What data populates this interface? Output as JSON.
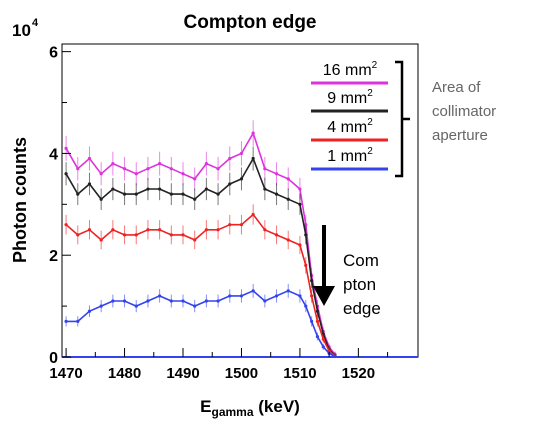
{
  "chart_data": {
    "type": "line",
    "title": "Compton edge",
    "xlabel_main": "E",
    "xlabel_sub": "gamma",
    "xlabel_unit": " (keV)",
    "ylabel": "Photon counts",
    "y_multiplier_base": "10",
    "y_multiplier_exp": "4",
    "xlim": [
      1469.3,
      1530.2
    ],
    "ylim": [
      0,
      6.15
    ],
    "x_ticks": [
      1470,
      1480,
      1490,
      1500,
      1510,
      1520
    ],
    "y_ticks": [
      0,
      2,
      4,
      6
    ],
    "grid": false,
    "legend_placement": "top-right",
    "legend_title": [
      "Area of",
      "collimator",
      "aperture"
    ],
    "annotation": [
      "Com",
      "pton",
      "edge"
    ],
    "series": [
      {
        "name": "16 mm",
        "name_sup": "2",
        "color": "#dd33dd",
        "x": [
          1470,
          1472,
          1474,
          1476,
          1478,
          1480,
          1482,
          1484,
          1486,
          1488,
          1490,
          1492,
          1494,
          1496,
          1498,
          1500,
          1502,
          1504,
          1506,
          1508,
          1510,
          1511,
          1512,
          1513,
          1514,
          1515,
          1516
        ],
        "y": [
          4.1,
          3.7,
          3.9,
          3.6,
          3.8,
          3.7,
          3.6,
          3.7,
          3.8,
          3.7,
          3.6,
          3.5,
          3.8,
          3.7,
          3.9,
          4.0,
          4.4,
          3.7,
          3.6,
          3.5,
          3.3,
          2.6,
          1.6,
          1.0,
          0.5,
          0.2,
          0.05
        ]
      },
      {
        "name": "9 mm",
        "name_sup": "2",
        "color": "#222222",
        "x": [
          1470,
          1472,
          1474,
          1476,
          1478,
          1480,
          1482,
          1484,
          1486,
          1488,
          1490,
          1492,
          1494,
          1496,
          1498,
          1500,
          1502,
          1504,
          1506,
          1508,
          1510,
          1511,
          1512,
          1513,
          1514,
          1515,
          1516
        ],
        "y": [
          3.6,
          3.2,
          3.4,
          3.1,
          3.3,
          3.2,
          3.2,
          3.3,
          3.3,
          3.2,
          3.2,
          3.1,
          3.3,
          3.2,
          3.4,
          3.5,
          3.9,
          3.3,
          3.2,
          3.1,
          3.0,
          2.4,
          1.5,
          0.9,
          0.45,
          0.15,
          0.03
        ]
      },
      {
        "name": "4 mm",
        "name_sup": "2",
        "color": "#ee2222",
        "x": [
          1470,
          1472,
          1474,
          1476,
          1478,
          1480,
          1482,
          1484,
          1486,
          1488,
          1490,
          1492,
          1494,
          1496,
          1498,
          1500,
          1502,
          1504,
          1506,
          1508,
          1510,
          1511,
          1512,
          1513,
          1514,
          1515,
          1516
        ],
        "y": [
          2.6,
          2.4,
          2.5,
          2.3,
          2.5,
          2.4,
          2.4,
          2.5,
          2.5,
          2.4,
          2.4,
          2.3,
          2.5,
          2.5,
          2.6,
          2.6,
          2.8,
          2.5,
          2.4,
          2.3,
          2.2,
          1.8,
          1.2,
          0.7,
          0.35,
          0.12,
          0.02
        ]
      },
      {
        "name": "1 mm",
        "name_sup": "2",
        "color": "#3344ee",
        "x": [
          1470,
          1472,
          1474,
          1476,
          1478,
          1480,
          1482,
          1484,
          1486,
          1488,
          1490,
          1492,
          1494,
          1496,
          1498,
          1500,
          1502,
          1504,
          1506,
          1508,
          1510,
          1511,
          1512,
          1513,
          1514,
          1515,
          1516
        ],
        "y": [
          0.7,
          0.7,
          0.9,
          1.0,
          1.1,
          1.1,
          1.0,
          1.1,
          1.2,
          1.1,
          1.1,
          1.0,
          1.1,
          1.1,
          1.2,
          1.2,
          1.3,
          1.1,
          1.2,
          1.3,
          1.2,
          1.0,
          0.7,
          0.4,
          0.2,
          0.07,
          0.01
        ]
      }
    ]
  }
}
